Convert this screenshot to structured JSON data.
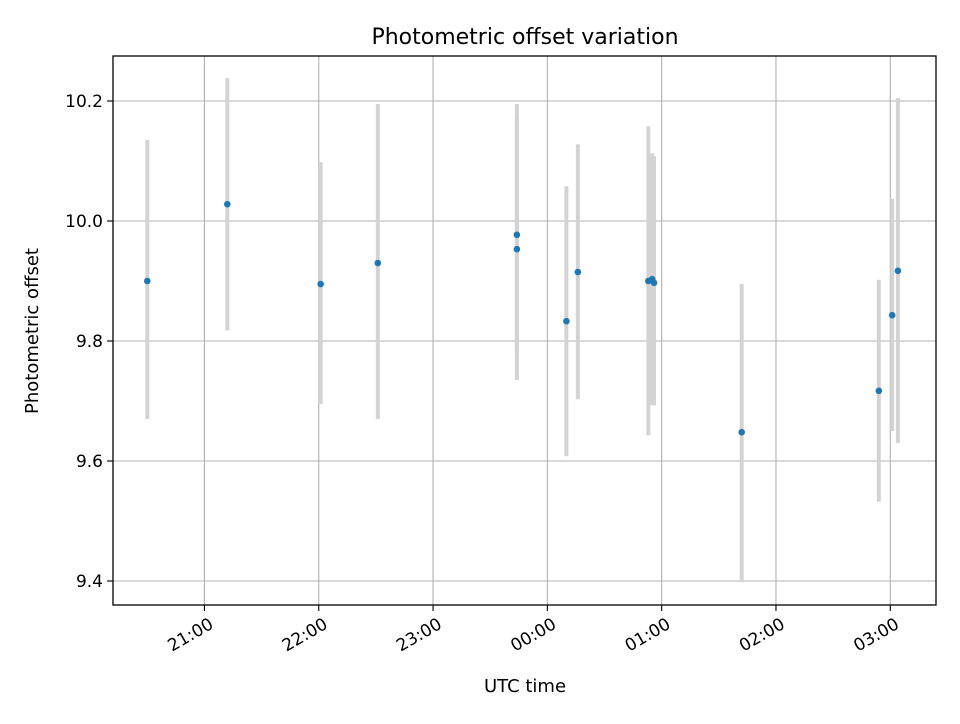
{
  "chart_data": {
    "type": "scatter",
    "title": "Photometric offset variation",
    "xlabel": "UTC time",
    "ylabel": "Photometric offset",
    "x_axis_type": "time",
    "x_tick_labels": [
      "21:00",
      "22:00",
      "23:00",
      "00:00",
      "01:00",
      "02:00",
      "03:00"
    ],
    "x_range": [
      "20:12",
      "03:24"
    ],
    "y_tick_labels": [
      "9.4",
      "9.6",
      "9.8",
      "10.0",
      "10.2"
    ],
    "ylim": [
      9.36,
      10.275
    ],
    "grid": true,
    "x_tick_rotation": "30deg",
    "colors": {
      "points": "#1f77b4",
      "errorbars": "#d3d3d3",
      "grid": "#b0b0b0"
    },
    "points": [
      {
        "time": "20:30",
        "y": 9.9,
        "ylow": 9.67,
        "yhigh": 10.135
      },
      {
        "time": "21:12",
        "y": 10.028,
        "ylow": 9.818,
        "yhigh": 10.238
      },
      {
        "time": "22:01",
        "y": 9.895,
        "ylow": 9.695,
        "yhigh": 10.098
      },
      {
        "time": "22:31",
        "y": 9.93,
        "ylow": 9.67,
        "yhigh": 10.195
      },
      {
        "time": "23:44",
        "y": 9.977,
        "ylow": 9.783,
        "yhigh": 10.172
      },
      {
        "time": "23:44",
        "y": 9.953,
        "ylow": 9.735,
        "yhigh": 10.195
      },
      {
        "time": "00:10",
        "y": 9.833,
        "ylow": 9.608,
        "yhigh": 10.058
      },
      {
        "time": "00:16",
        "y": 9.915,
        "ylow": 9.703,
        "yhigh": 10.128
      },
      {
        "time": "00:53",
        "y": 9.9,
        "ylow": 9.643,
        "yhigh": 10.158
      },
      {
        "time": "00:55",
        "y": 9.903,
        "ylow": 9.693,
        "yhigh": 10.113
      },
      {
        "time": "00:56",
        "y": 9.897,
        "ylow": 9.693,
        "yhigh": 10.108
      },
      {
        "time": "01:42",
        "y": 9.648,
        "ylow": 9.398,
        "yhigh": 9.895
      },
      {
        "time": "02:54",
        "y": 9.717,
        "ylow": 9.532,
        "yhigh": 9.902
      },
      {
        "time": "03:01",
        "y": 9.843,
        "ylow": 9.65,
        "yhigh": 10.037
      },
      {
        "time": "03:04",
        "y": 9.917,
        "ylow": 9.63,
        "yhigh": 10.205
      }
    ]
  }
}
